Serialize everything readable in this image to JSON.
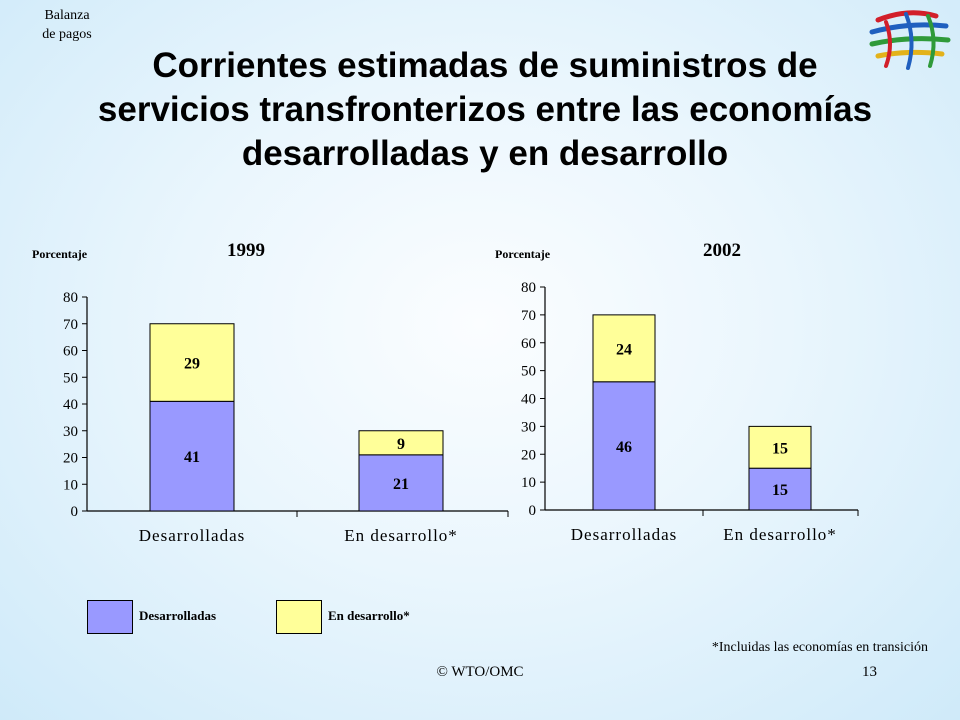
{
  "header": {
    "section_label_line1": "Balanza",
    "section_label_line2": "de pagos",
    "title": "Corrientes estimadas de suministros de servicios transfronterizos entre las economías desarrolladas y en desarrollo",
    "logo_icon": "wto-logo-icon"
  },
  "chart_data": [
    {
      "type": "bar",
      "stacked": true,
      "title": "1999",
      "ylabel": "Porcentaje",
      "categories": [
        "Desarrolladas",
        "En desarrollo*"
      ],
      "series": [
        {
          "name": "Desarrolladas",
          "values": [
            41,
            21
          ],
          "color": "#9999ff"
        },
        {
          "name": "En desarrollo*",
          "values": [
            29,
            9
          ],
          "color": "#ffff99"
        }
      ],
      "ylim": [
        0,
        80
      ],
      "yticks": [
        0,
        10,
        20,
        30,
        40,
        50,
        60,
        70,
        80
      ],
      "grid": false
    },
    {
      "type": "bar",
      "stacked": true,
      "title": "2002",
      "ylabel": "Porcentaje",
      "categories": [
        "Desarrolladas",
        "En desarrollo*"
      ],
      "series": [
        {
          "name": "Desarrolladas",
          "values": [
            46,
            15
          ],
          "color": "#9999ff"
        },
        {
          "name": "En desarrollo*",
          "values": [
            24,
            15
          ],
          "color": "#ffff99"
        }
      ],
      "ylim": [
        0,
        80
      ],
      "yticks": [
        0,
        10,
        20,
        30,
        40,
        50,
        60,
        70,
        80
      ],
      "grid": false
    }
  ],
  "legend": {
    "items": [
      {
        "label": "Desarrolladas",
        "color": "#9999ff"
      },
      {
        "label": "En desarrollo*",
        "color": "#ffff99"
      }
    ]
  },
  "footnote": "*Incluidas las economías en transición",
  "footer": {
    "copyright": "© WTO/OMC",
    "page_number": "13"
  }
}
